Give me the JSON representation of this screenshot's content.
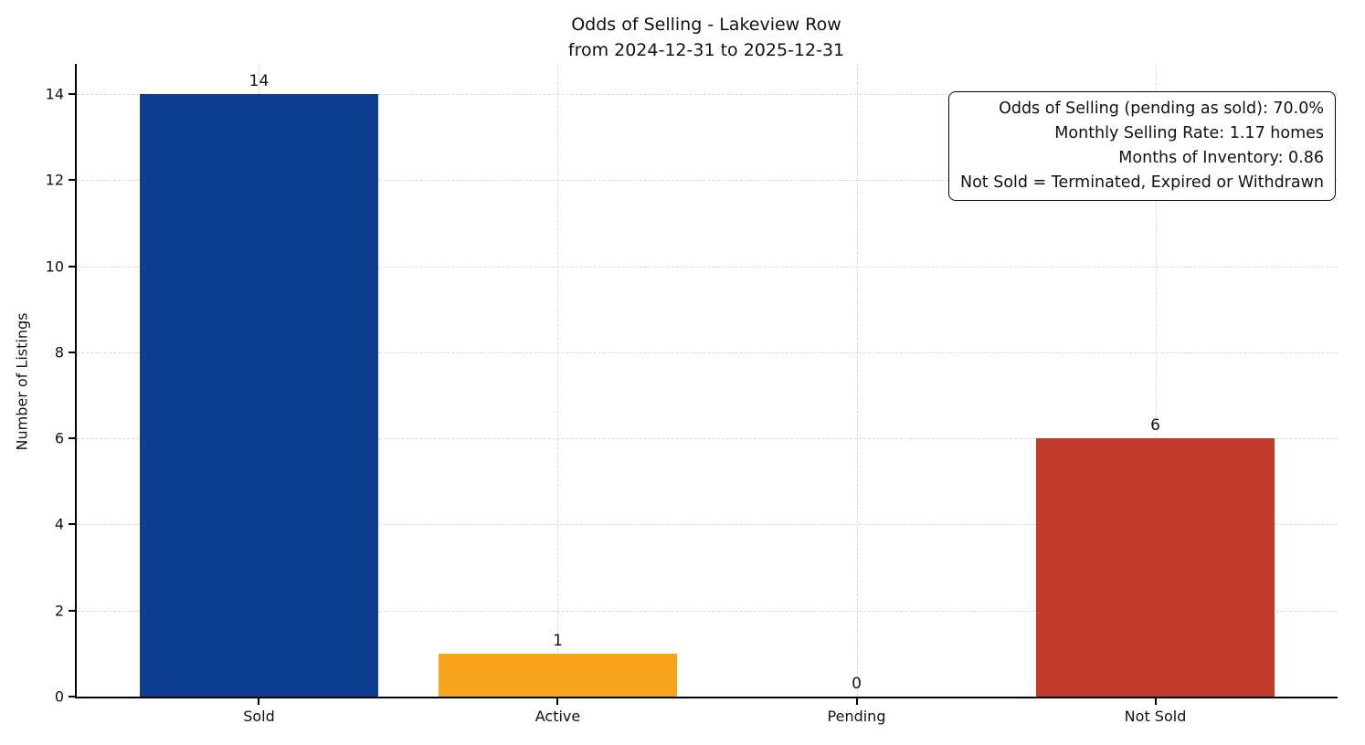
{
  "chart_data": {
    "type": "bar",
    "title": "Odds of Selling - Lakeview Row",
    "subtitle": "from 2024-12-31 to 2025-12-31",
    "categories": [
      "Sold",
      "Active",
      "Pending",
      "Not Sold"
    ],
    "values": [
      14,
      1,
      0,
      6
    ],
    "bar_colors": [
      "#0e3e90",
      "#f6a41c",
      "#888888",
      "#c13a2b"
    ],
    "value_labels": [
      "14",
      "1",
      "0",
      "6"
    ],
    "xlabel": "",
    "ylabel": "Number of Listings",
    "ylim": [
      0,
      14.7
    ],
    "yticks": [
      0,
      2,
      4,
      6,
      8,
      10,
      12,
      14
    ],
    "grid": "dashed, both axes",
    "legend": "none",
    "annotation_box": {
      "position": "top-right",
      "lines": [
        "Odds of Selling (pending as sold): 70.0%",
        "Monthly Selling Rate: 1.17 homes",
        "Months of Inventory: 0.86",
        "Not Sold = Terminated, Expired or Withdrawn"
      ]
    }
  }
}
